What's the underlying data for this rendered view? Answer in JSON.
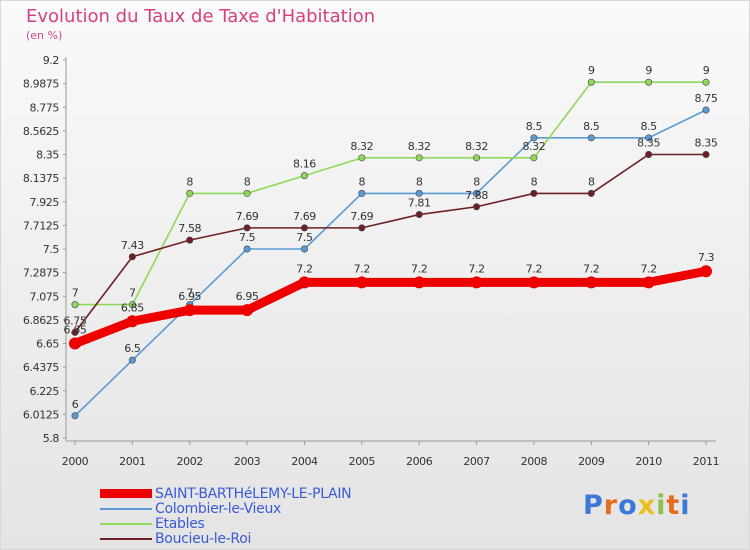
{
  "title": "Evolution du Taux de Taxe d'Habitation",
  "subtitle": "(en %)",
  "logo_text": "Proxiti",
  "chart_data": {
    "type": "line",
    "title": "Evolution du Taux de Taxe d'Habitation",
    "subtitle": "(en %)",
    "x": [
      "2000",
      "2001",
      "2002",
      "2003",
      "2004",
      "2005",
      "2006",
      "2007",
      "2008",
      "2009",
      "2010",
      "2011"
    ],
    "ylim": [
      5.8,
      9.2
    ],
    "yticks": [
      "9.2",
      "8.9875",
      "8.775",
      "8.5625",
      "8.35",
      "8.1375",
      "7.925",
      "7.7125",
      "7.5",
      "7.2875",
      "7.075",
      "6.8625",
      "6.65",
      "6.4375",
      "6.225",
      "6.0125",
      "5.8"
    ],
    "grid": false,
    "legend_position": "bottom-left",
    "series": [
      {
        "name": "SAINT-BARTHéLEMY-LE-PLAIN",
        "color": "#ee0000",
        "labels": [
          "6.65",
          "6.85",
          "6.95",
          "6.95",
          "7.2",
          "7.2",
          "7.2",
          "7.2",
          "7.2",
          "7.2",
          "7.2",
          "7.3"
        ],
        "values": [
          6.65,
          6.85,
          6.95,
          6.95,
          7.2,
          7.2,
          7.2,
          7.2,
          7.2,
          7.2,
          7.2,
          7.3
        ]
      },
      {
        "name": "Colombier-le-Vieux",
        "color": "#5b9bd5",
        "labels": [
          "6",
          "6.5",
          "7",
          "7.5",
          "7.5",
          "8",
          "8",
          "8",
          "8.5",
          "8.5",
          "8.5",
          "8.75"
        ],
        "values": [
          6,
          6.5,
          7,
          7.5,
          7.5,
          8,
          8,
          8,
          8.5,
          8.5,
          8.5,
          8.75
        ]
      },
      {
        "name": "Etables",
        "color": "#8ed95a",
        "labels": [
          "7",
          "7",
          "8",
          "8",
          "8.16",
          "8.32",
          "8.32",
          "8.32",
          "8.32",
          "9",
          "9",
          "9"
        ],
        "values": [
          7,
          7,
          8,
          8,
          8.16,
          8.32,
          8.32,
          8.32,
          8.32,
          9,
          9,
          9
        ]
      },
      {
        "name": "Boucieu-le-Roi",
        "color": "#6e1f24",
        "labels": [
          "6.75",
          "7.43",
          "7.58",
          "7.69",
          "7.69",
          "7.69",
          "7.81",
          "7.88",
          "8",
          "8",
          "8.35",
          "8.35"
        ],
        "values": [
          6.75,
          7.43,
          7.58,
          7.69,
          7.69,
          7.69,
          7.81,
          7.88,
          8,
          8,
          8.35,
          8.35
        ]
      }
    ]
  },
  "logo_colors": [
    "#3b78d8",
    "#e86b1d",
    "#3b78d8",
    "#e8c11d",
    "#8bc34a",
    "#e86b1d",
    "#3b78d8"
  ]
}
